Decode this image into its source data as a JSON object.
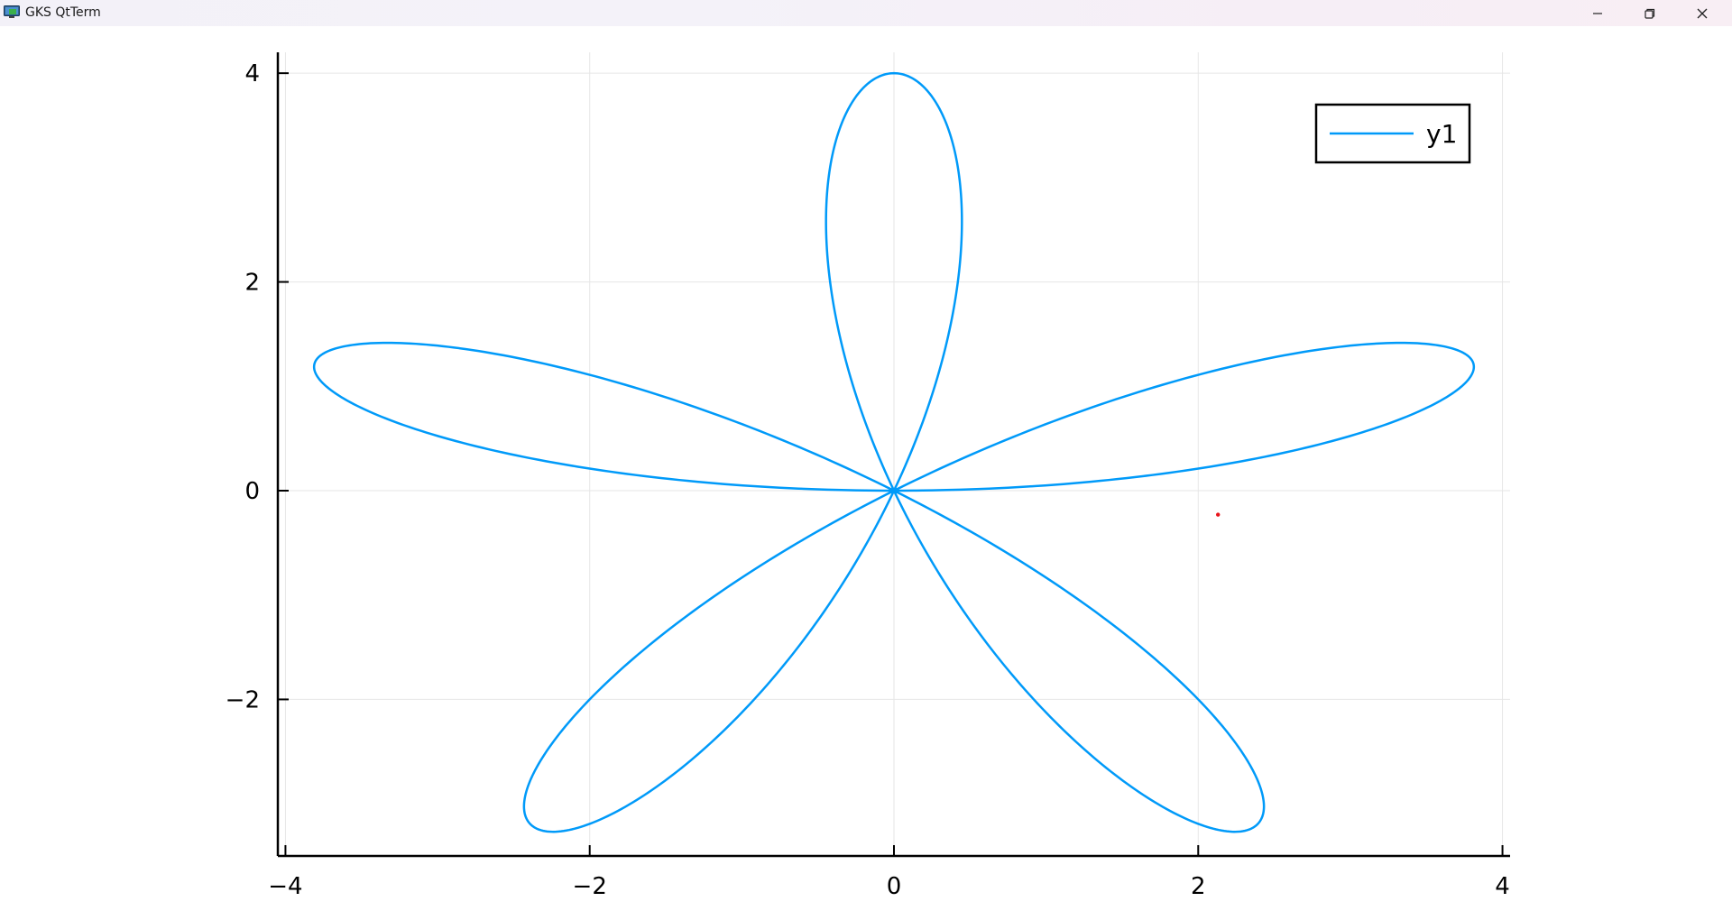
{
  "window": {
    "title": "GKS QtTerm",
    "app_icon": "gks-monitor-icon",
    "controls": {
      "minimize": "minimize-icon",
      "restore": "restore-icon",
      "close": "close-icon"
    }
  },
  "colors": {
    "series": "#009af9",
    "marker": "#e8141b",
    "grid": "#e6e6e6",
    "axis": "#000000"
  },
  "chart_data": {
    "type": "line",
    "title": "",
    "xlabel": "",
    "ylabel": "",
    "equation": "r = 4*sin(5*theta) (5-petal rose, parametric x = r cos(theta), y = r sin(theta))",
    "xlim": [
      -4.05,
      4.05
    ],
    "ylim": [
      -3.5,
      4.2
    ],
    "xticks": [
      {
        "value": -4,
        "label": "−4"
      },
      {
        "value": -2,
        "label": "−2"
      },
      {
        "value": 0,
        "label": "0"
      },
      {
        "value": 2,
        "label": "2"
      },
      {
        "value": 4,
        "label": "4"
      }
    ],
    "yticks": [
      {
        "value": -2,
        "label": "−2"
      },
      {
        "value": 0,
        "label": "0"
      },
      {
        "value": 2,
        "label": "2"
      },
      {
        "value": 4,
        "label": "4"
      }
    ],
    "grid": true,
    "legend": {
      "position": "top-right",
      "entries": [
        {
          "label": "y1"
        }
      ]
    },
    "series": [
      {
        "name": "y1",
        "kind": "rose",
        "amplitude": 4,
        "petals": 5,
        "samples": 1000
      }
    ],
    "annotations": [
      {
        "type": "point",
        "x": 2.13,
        "y": -0.23
      }
    ]
  }
}
